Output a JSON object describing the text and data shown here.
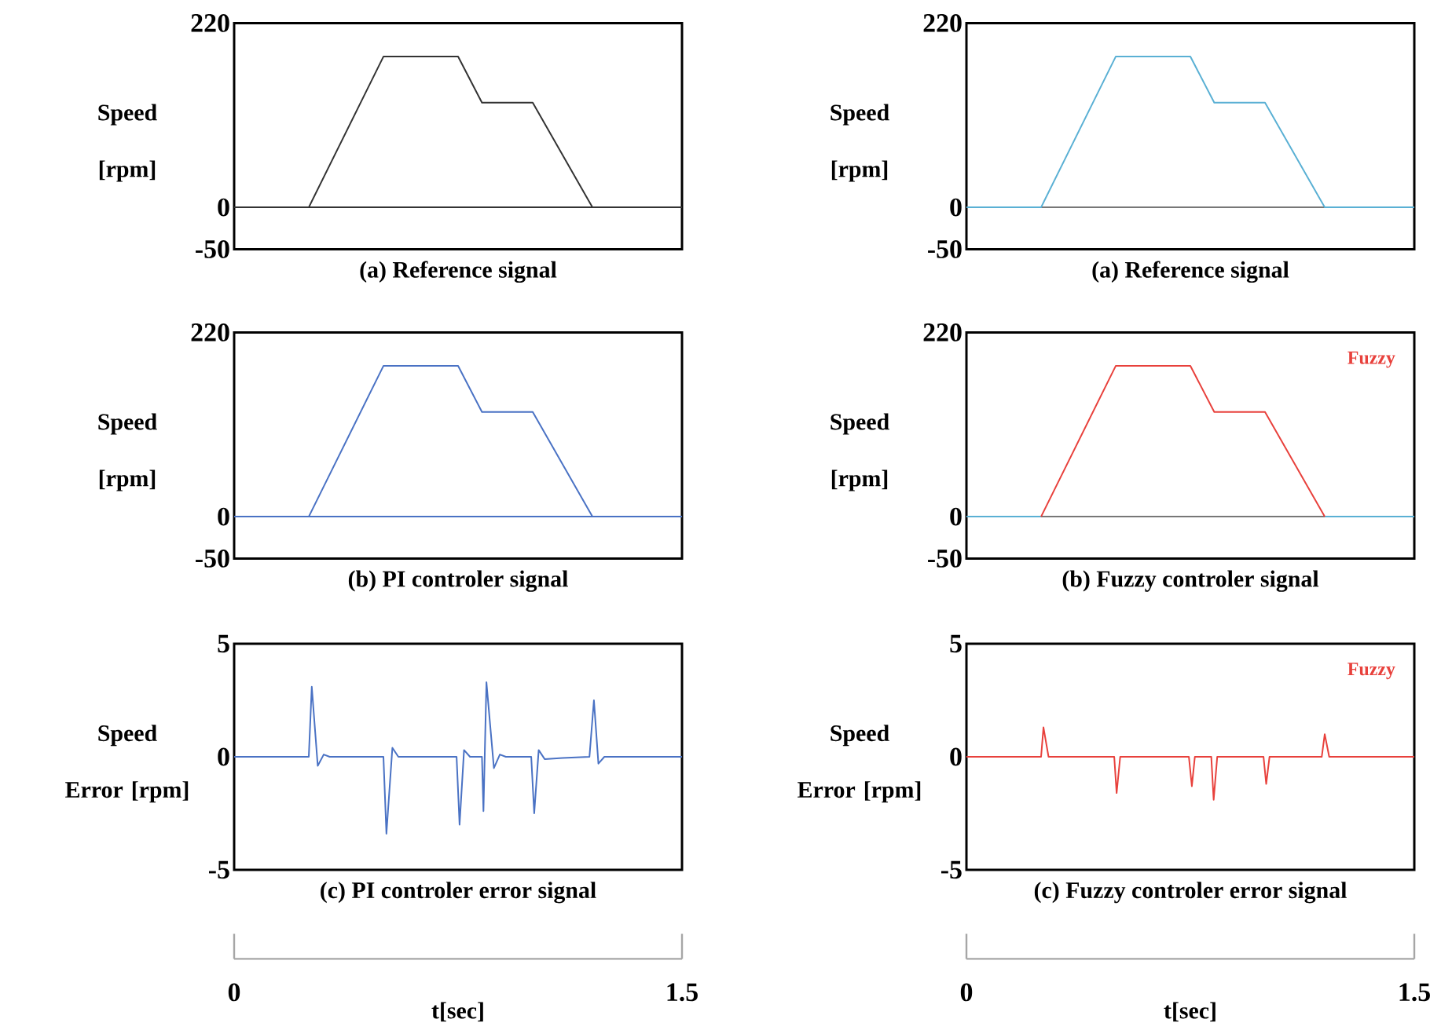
{
  "chart_data": [
    {
      "type": "line",
      "title": "(a) Reference signal",
      "ylabel": "Speed [rpm]",
      "xlim": [
        0,
        1.5
      ],
      "ylim": [
        -50,
        220
      ],
      "yticks": [
        -50,
        0,
        220
      ],
      "tick_labels": "y",
      "ref_lines": [
        {
          "axis": "y",
          "value": 0,
          "color": "#333333"
        }
      ],
      "series": [
        {
          "color": "#333333",
          "x": [
            0,
            0.25,
            0.5,
            0.75,
            0.83,
            1.0,
            1.2,
            1.5
          ],
          "values": [
            0,
            0,
            180,
            180,
            125,
            125,
            0,
            0
          ]
        }
      ]
    },
    {
      "type": "line",
      "title": "(a) Reference signal",
      "ylabel": "Speed [rpm]",
      "xlim": [
        0,
        1.5
      ],
      "ylim": [
        -50,
        220
      ],
      "yticks": [
        -50,
        0,
        220
      ],
      "tick_labels": "y",
      "ref_lines": [
        {
          "axis": "y",
          "value": 0,
          "color": "#777777"
        }
      ],
      "series": [
        {
          "color": "#5ab0d4",
          "x": [
            0,
            0.25,
            0.5,
            0.75,
            0.83,
            1.0,
            1.2,
            1.5
          ],
          "values": [
            0,
            0,
            180,
            180,
            125,
            125,
            0,
            0
          ]
        }
      ]
    },
    {
      "type": "line",
      "title": "(b) PI controler signal",
      "ylabel": "Speed [rpm]",
      "xlim": [
        0,
        1.5
      ],
      "ylim": [
        -50,
        220
      ],
      "yticks": [
        -50,
        0,
        220
      ],
      "tick_labels": "y",
      "ref_lines": [
        {
          "axis": "y",
          "value": 0,
          "color": "#4a72c4"
        }
      ],
      "series": [
        {
          "color": "#4a72c4",
          "x": [
            0,
            0.25,
            0.5,
            0.75,
            0.83,
            1.0,
            1.2,
            1.5
          ],
          "values": [
            0,
            0,
            180,
            180,
            125,
            125,
            0,
            0
          ]
        }
      ]
    },
    {
      "type": "line",
      "title": "(b) Fuzzy controler signal",
      "ylabel": "Speed [rpm]",
      "xlim": [
        0,
        1.5
      ],
      "ylim": [
        -50,
        220
      ],
      "yticks": [
        -50,
        0,
        220
      ],
      "tick_labels": "y",
      "ref_lines": [
        {
          "axis": "y",
          "value": 0,
          "color": "#777777"
        }
      ],
      "series": [
        {
          "color": "#5ab0d4",
          "x": [
            0,
            0.25,
            0.7,
            1.2,
            1.5
          ],
          "values": [
            0,
            0,
            null,
            0,
            0
          ]
        },
        {
          "name": "Fuzzy",
          "color": "#e8413c",
          "x": [
            0.25,
            0.5,
            0.75,
            0.83,
            1.0,
            1.2
          ],
          "values": [
            0,
            180,
            180,
            125,
            125,
            0
          ]
        }
      ]
    },
    {
      "type": "line",
      "title": "(c) PI controler error signal",
      "ylabel": "Speed Error [rpm]",
      "xlabel": "t[sec]",
      "xlim": [
        0,
        1.5
      ],
      "xticks": [
        0,
        1.5
      ],
      "ylim": [
        -5,
        5
      ],
      "yticks": [
        -5,
        0,
        5
      ],
      "series": [
        {
          "color": "#4a72c4",
          "x": [
            0,
            0.25,
            0.26,
            0.28,
            0.3,
            0.32,
            0.5,
            0.51,
            0.53,
            0.55,
            0.745,
            0.755,
            0.77,
            0.79,
            0.83,
            0.835,
            0.845,
            0.87,
            0.89,
            0.91,
            0.995,
            1.005,
            1.02,
            1.04,
            1.1,
            1.19,
            1.205,
            1.22,
            1.24,
            1.5
          ],
          "values": [
            0,
            0,
            3.1,
            -0.4,
            0.1,
            0,
            0,
            -3.4,
            0.4,
            0,
            0,
            -3.0,
            0.3,
            0,
            0,
            -2.4,
            3.3,
            -0.5,
            0.1,
            0,
            0,
            -2.5,
            0.3,
            -0.1,
            -0.05,
            0,
            2.5,
            -0.3,
            0,
            0
          ]
        }
      ]
    },
    {
      "type": "line",
      "title": "(c) Fuzzy controler error signal",
      "ylabel": "Speed Error [rpm]",
      "xlabel": "t[sec]",
      "xlim": [
        0,
        1.5
      ],
      "xticks": [
        0,
        1.5
      ],
      "ylim": [
        -5,
        5
      ],
      "yticks": [
        -5,
        0,
        5
      ],
      "series": [
        {
          "name": "Fuzzy",
          "color": "#e8413c",
          "x": [
            0,
            0.25,
            0.258,
            0.275,
            0.495,
            0.503,
            0.515,
            0.745,
            0.755,
            0.765,
            0.82,
            0.828,
            0.84,
            0.995,
            1.004,
            1.015,
            1.19,
            1.2,
            1.215,
            1.5
          ],
          "values": [
            0,
            0,
            1.3,
            0,
            0,
            -1.6,
            0,
            0,
            -1.3,
            0,
            0,
            -1.9,
            0,
            0,
            -1.2,
            0,
            0,
            1.0,
            0,
            0
          ]
        }
      ]
    }
  ]
}
